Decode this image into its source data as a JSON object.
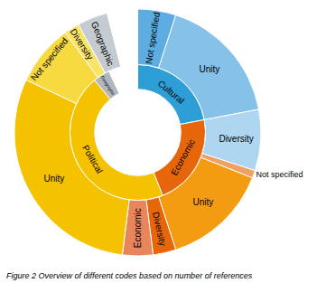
{
  "chart_data": {
    "type": "donut",
    "title": "Figure 2 Overview of different codes based on number of references",
    "series": [
      {
        "categories": [
          "Cultural",
          "Economic",
          "Political",
          "Geographic",
          null
        ],
        "values": [
          22,
          22,
          45,
          4,
          7
        ],
        "colors": [
          "#2e9fd6",
          "#e8660a",
          "#f5c200",
          "#b0b8bd",
          "#ffffff"
        ]
      },
      {
        "categories": [
          "Not specified",
          "Unity",
          "Diversity",
          "Not specified",
          "Unity",
          "Diversity",
          "Economic",
          "Unity",
          "Not specified",
          "Diversity",
          "Geographic",
          null
        ],
        "values": [
          5,
          17,
          8,
          1,
          14,
          3,
          4,
          30,
          8,
          2,
          4,
          4
        ],
        "colors": [
          "#5dade2",
          "#85c1e9",
          "#aed6f1",
          "#f0a060",
          "#f39c12",
          "#e8660a",
          "#e8855b",
          "#f5c200",
          "#f7d940",
          "#f9e468",
          "#c5ccd1",
          "#ffffff"
        ]
      }
    ]
  }
}
